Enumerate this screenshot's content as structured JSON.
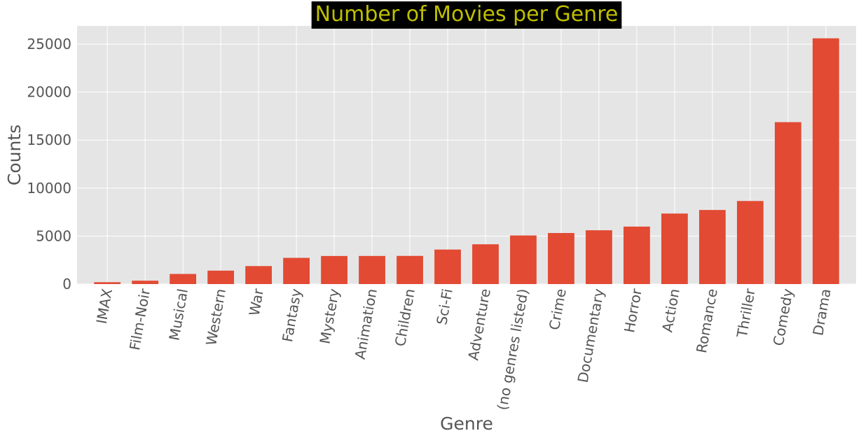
{
  "chart_data": {
    "type": "bar",
    "title": "Number of Movies per Genre",
    "xlabel": "Genre",
    "ylabel": "Counts",
    "categories": [
      "IMAX",
      "Film-Noir",
      "Musical",
      "Western",
      "War",
      "Fantasy",
      "Mystery",
      "Animation",
      "Children",
      "Sci-Fi",
      "Adventure",
      "(no genres listed)",
      "Crime",
      "Documentary",
      "Horror",
      "Action",
      "Romance",
      "Thriller",
      "Comedy",
      "Drama"
    ],
    "values": [
      195,
      353,
      1054,
      1399,
      1874,
      2731,
      2925,
      2929,
      2935,
      3595,
      4145,
      5062,
      5319,
      5605,
      5989,
      7348,
      7719,
      8654,
      16870,
      25606
    ],
    "yticks": [
      0,
      5000,
      10000,
      15000,
      20000,
      25000
    ],
    "ylim": [
      0,
      26900
    ],
    "grid": true,
    "colors": {
      "bar": "#e24a33",
      "plot_background": "#e5e5e5",
      "grid": "#ffffff",
      "title_text": "#bfbf00",
      "title_background": "#000000",
      "text": "#555555"
    }
  }
}
